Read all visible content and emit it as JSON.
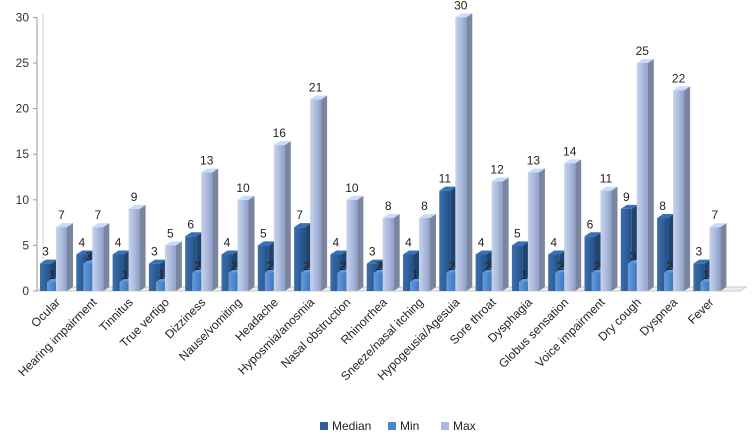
{
  "chart_data": {
    "type": "bar",
    "style": "3d-clustered-column",
    "categories": [
      "Ocular",
      "Hearing impairment",
      "Tinnitus",
      "True vertigo",
      "Dizziness",
      "Nause/vomiting",
      "Headache",
      "Hyposmia/anosmia",
      "Nasal obstruction",
      "Rhinorrhea",
      "Sneeze/nasal  itching",
      "Hypogeusia/Agesuia",
      "Sore throat",
      "Dysphagia",
      "Globus sensation",
      "Voice impairment",
      "Dry cough",
      "Dyspnea",
      "Fever"
    ],
    "series": [
      {
        "name": "Median",
        "color": "#2e5f9a",
        "values": [
          3,
          4,
          4,
          3,
          6,
          4,
          5,
          7,
          4,
          3,
          4,
          11,
          4,
          5,
          4,
          6,
          9,
          8,
          3
        ]
      },
      {
        "name": "Min",
        "color": "#4a84c9",
        "values": [
          1,
          3,
          1,
          1,
          2,
          2,
          2,
          2,
          2,
          2,
          1,
          2,
          2,
          1,
          2,
          2,
          3,
          2,
          1
        ]
      },
      {
        "name": "Max",
        "color": "#aab9dc",
        "values": [
          7,
          7,
          9,
          5,
          13,
          10,
          16,
          21,
          10,
          8,
          8,
          30,
          12,
          13,
          14,
          11,
          25,
          22,
          7
        ]
      }
    ],
    "y_ticks": [
      "0",
      "5",
      "10",
      "15",
      "20",
      "25",
      "30"
    ],
    "ylim": [
      0,
      30
    ],
    "grid": false,
    "legend_position": "bottom"
  }
}
